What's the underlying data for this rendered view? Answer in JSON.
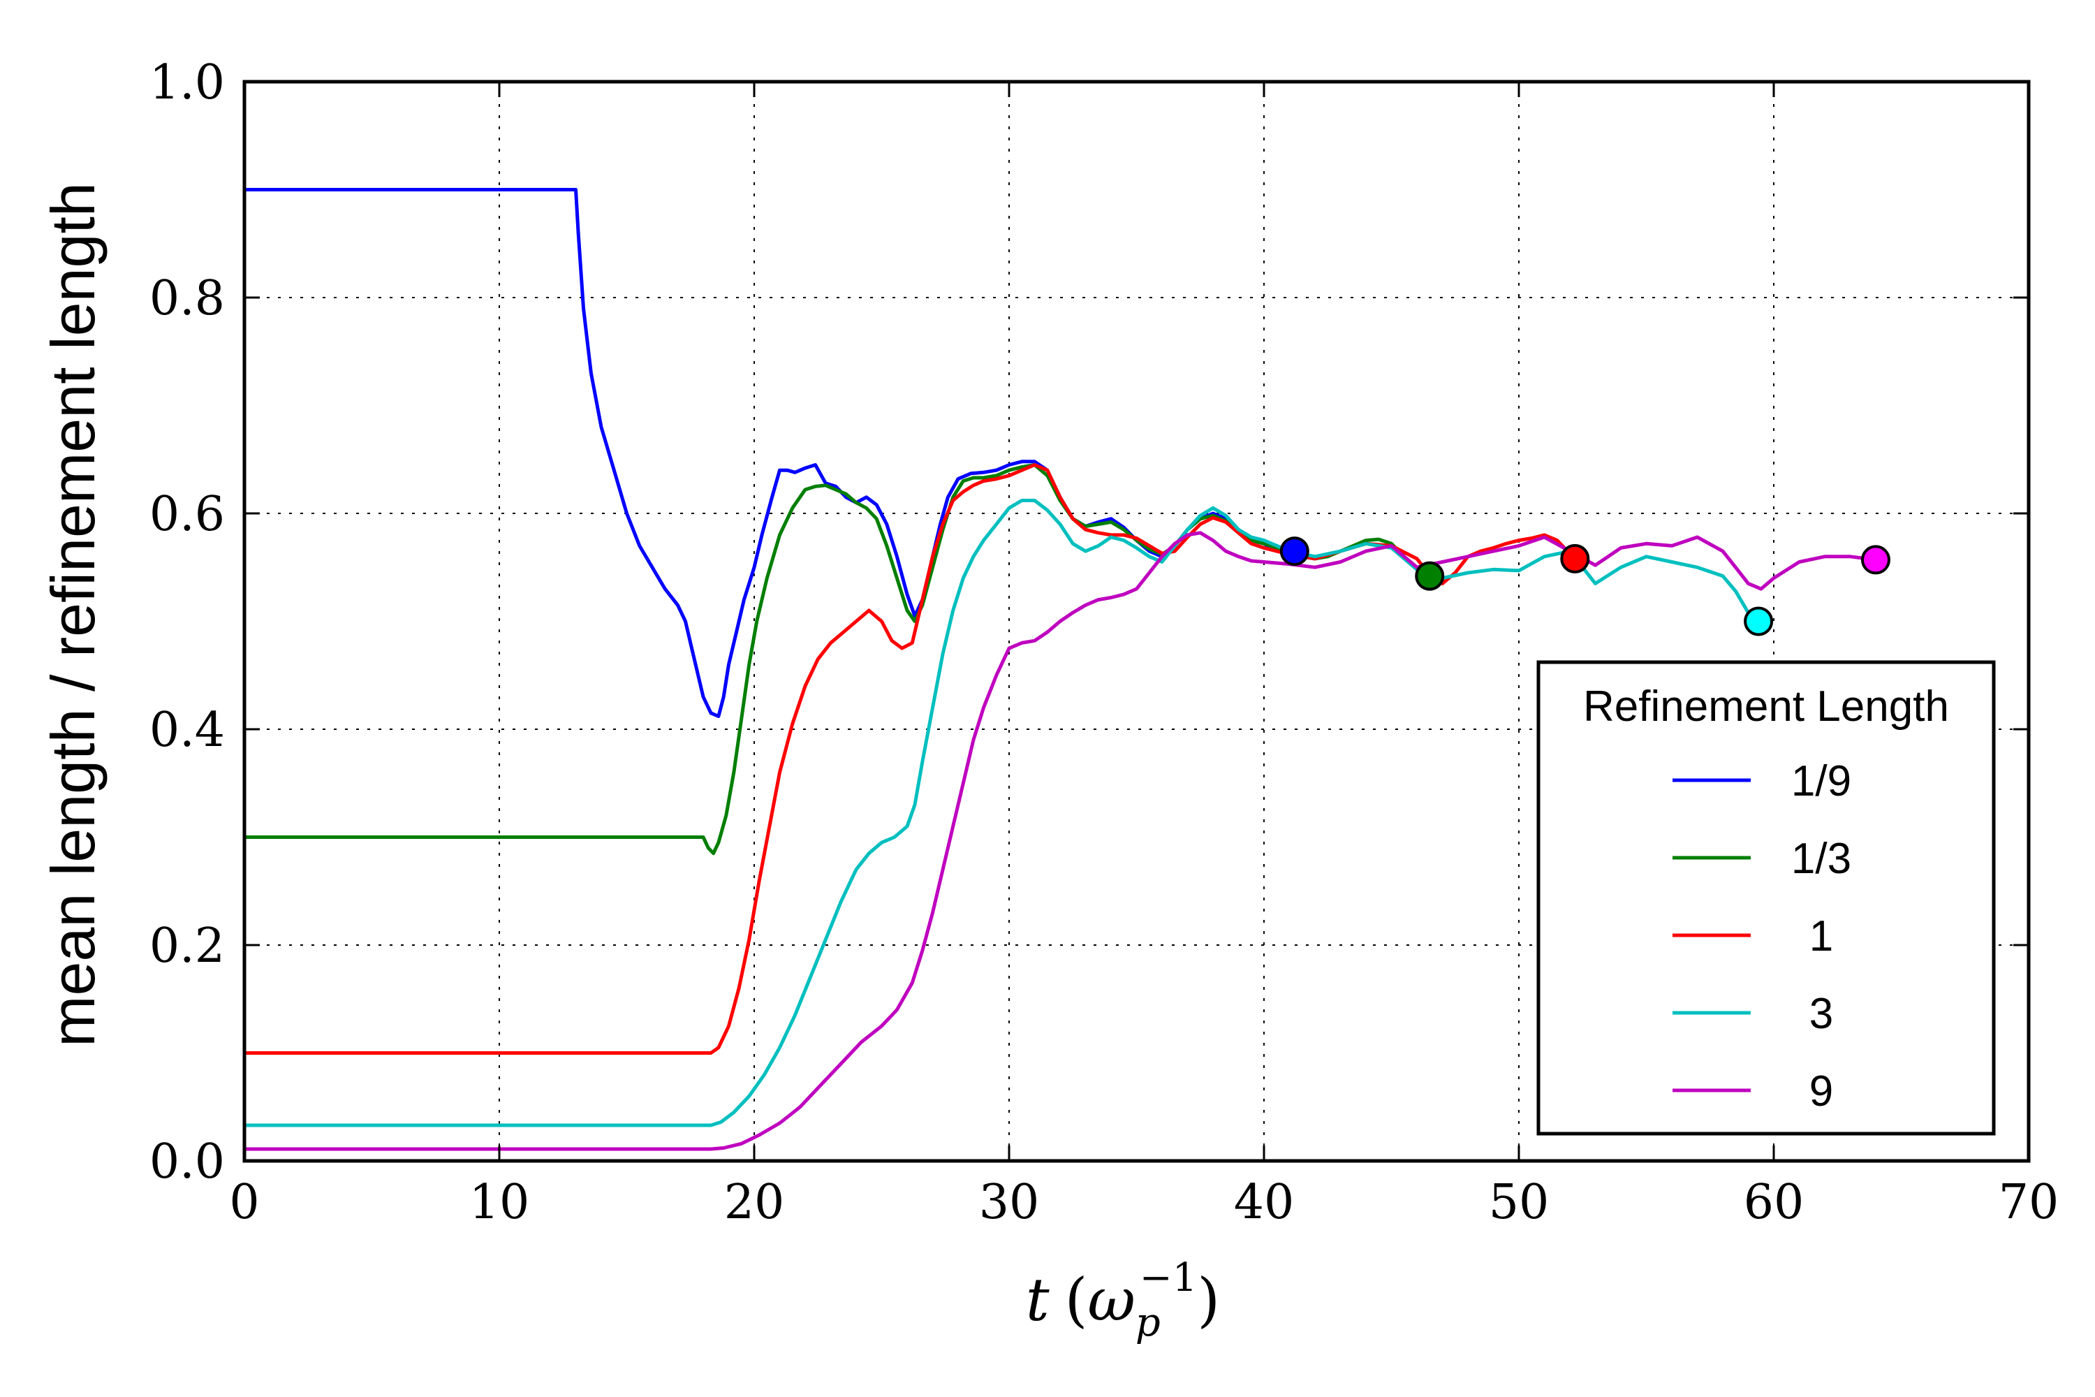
{
  "chart_data": {
    "type": "line",
    "title": "",
    "xlabel": "t (ω_p^-1)",
    "xlabel_main": "t",
    "xlabel_open": "(",
    "xlabel_omega": "ω",
    "xlabel_sub": "p",
    "xlabel_sup": "−1",
    "xlabel_close": ")",
    "ylabel": "mean length / refinement length",
    "xlim": [
      0,
      70
    ],
    "ylim": [
      0.0,
      1.0
    ],
    "xticks": [
      0,
      10,
      20,
      30,
      40,
      50,
      60,
      70
    ],
    "xtick_labels": [
      "0",
      "10",
      "20",
      "30",
      "40",
      "50",
      "60",
      "70"
    ],
    "yticks": [
      0.0,
      0.2,
      0.4,
      0.6,
      0.8,
      1.0
    ],
    "ytick_labels": [
      "0.0",
      "0.2",
      "0.4",
      "0.6",
      "0.8",
      "1.0"
    ],
    "grid": true,
    "legend": {
      "title": "Refinement Length",
      "placement": "lower-right"
    },
    "series": [
      {
        "name": "1/9",
        "color": "#0000ff",
        "x": [
          0,
          13,
          13.1,
          13.3,
          13.6,
          14,
          14.5,
          15,
          15.5,
          16,
          16.5,
          17,
          17.3,
          17.6,
          18,
          18.3,
          18.6,
          18.8,
          19,
          19.3,
          19.6,
          20,
          20.3,
          20.7,
          21,
          21.3,
          21.6,
          22,
          22.4,
          22.8,
          23.2,
          23.6,
          24,
          24.4,
          24.8,
          25.2,
          25.6,
          26,
          26.3,
          26.6,
          27,
          27.3,
          27.6,
          28,
          28.5,
          29,
          29.5,
          30,
          30.5,
          31,
          31.5,
          32,
          32.5,
          33,
          33.5,
          34,
          34.5,
          35,
          35.5,
          36,
          36.5,
          37,
          37.5,
          38,
          38.5,
          39,
          39.5,
          40,
          40.5,
          41.2
        ],
        "y": [
          0.9,
          0.9,
          0.86,
          0.79,
          0.73,
          0.68,
          0.64,
          0.6,
          0.57,
          0.55,
          0.53,
          0.515,
          0.5,
          0.47,
          0.43,
          0.415,
          0.412,
          0.43,
          0.46,
          0.49,
          0.52,
          0.55,
          0.58,
          0.615,
          0.64,
          0.64,
          0.638,
          0.642,
          0.645,
          0.628,
          0.625,
          0.615,
          0.61,
          0.615,
          0.608,
          0.59,
          0.56,
          0.525,
          0.505,
          0.52,
          0.56,
          0.59,
          0.615,
          0.632,
          0.637,
          0.638,
          0.64,
          0.645,
          0.648,
          0.648,
          0.64,
          0.615,
          0.595,
          0.588,
          0.592,
          0.595,
          0.587,
          0.575,
          0.565,
          0.56,
          0.57,
          0.585,
          0.595,
          0.6,
          0.595,
          0.585,
          0.575,
          0.572,
          0.565,
          0.565
        ],
        "end_marker": [
          41.2,
          0.565
        ]
      },
      {
        "name": "1/3",
        "color": "#007f00",
        "x": [
          0,
          18,
          18.2,
          18.4,
          18.6,
          18.9,
          19.2,
          19.5,
          19.8,
          20.1,
          20.5,
          21,
          21.5,
          22,
          22.4,
          22.8,
          23.2,
          23.6,
          24,
          24.4,
          24.8,
          25.2,
          25.6,
          26,
          26.3,
          26.6,
          27,
          27.4,
          27.8,
          28.2,
          28.6,
          29,
          29.5,
          30,
          30.5,
          31,
          31.5,
          32,
          32.5,
          33,
          33.5,
          34,
          34.5,
          35,
          35.5,
          36,
          36.5,
          37,
          37.5,
          38,
          38.5,
          39,
          39.5,
          40,
          40.5,
          41,
          41.5,
          42,
          42.5,
          43,
          43.5,
          44,
          44.5,
          45,
          45.5,
          46,
          46.5
        ],
        "y": [
          0.3,
          0.3,
          0.29,
          0.285,
          0.295,
          0.32,
          0.36,
          0.41,
          0.46,
          0.5,
          0.54,
          0.58,
          0.605,
          0.622,
          0.625,
          0.626,
          0.622,
          0.618,
          0.61,
          0.605,
          0.595,
          0.57,
          0.54,
          0.51,
          0.5,
          0.515,
          0.55,
          0.585,
          0.615,
          0.63,
          0.633,
          0.633,
          0.635,
          0.64,
          0.643,
          0.645,
          0.635,
          0.612,
          0.595,
          0.588,
          0.59,
          0.592,
          0.585,
          0.575,
          0.567,
          0.562,
          0.57,
          0.585,
          0.595,
          0.598,
          0.593,
          0.583,
          0.575,
          0.572,
          0.568,
          0.565,
          0.56,
          0.558,
          0.56,
          0.565,
          0.57,
          0.575,
          0.576,
          0.572,
          0.56,
          0.548,
          0.542
        ],
        "end_marker": [
          46.5,
          0.542
        ]
      },
      {
        "name": "1",
        "color": "#ff0000",
        "x": [
          0,
          18.3,
          18.6,
          19,
          19.4,
          19.8,
          20.2,
          20.6,
          21,
          21.5,
          22,
          22.5,
          23,
          23.5,
          24,
          24.5,
          25,
          25.4,
          25.8,
          26.2,
          26.6,
          27,
          27.4,
          27.8,
          28.2,
          28.6,
          29,
          29.5,
          30,
          30.5,
          31,
          31.5,
          32,
          32.5,
          33,
          33.5,
          34,
          34.5,
          35,
          35.5,
          36,
          36.5,
          37,
          37.5,
          38,
          38.5,
          39,
          39.5,
          40,
          41,
          42,
          43,
          44,
          45,
          46,
          46.5,
          47,
          47.5,
          48,
          48.5,
          49,
          49.5,
          50,
          50.5,
          51,
          51.5,
          52.2
        ],
        "y": [
          0.1,
          0.1,
          0.105,
          0.125,
          0.16,
          0.205,
          0.26,
          0.31,
          0.36,
          0.405,
          0.44,
          0.465,
          0.48,
          0.49,
          0.5,
          0.51,
          0.5,
          0.482,
          0.475,
          0.48,
          0.52,
          0.56,
          0.59,
          0.612,
          0.62,
          0.626,
          0.63,
          0.632,
          0.635,
          0.64,
          0.645,
          0.64,
          0.615,
          0.595,
          0.585,
          0.582,
          0.58,
          0.58,
          0.577,
          0.57,
          0.563,
          0.565,
          0.578,
          0.59,
          0.596,
          0.592,
          0.582,
          0.572,
          0.568,
          0.562,
          0.558,
          0.565,
          0.572,
          0.57,
          0.558,
          0.543,
          0.535,
          0.545,
          0.56,
          0.565,
          0.568,
          0.572,
          0.575,
          0.577,
          0.58,
          0.575,
          0.558
        ],
        "end_marker": [
          52.2,
          0.558
        ]
      },
      {
        "name": "3",
        "color": "#00bfbf",
        "x": [
          0,
          18.3,
          18.7,
          19.2,
          19.8,
          20.4,
          21,
          21.6,
          22.2,
          22.8,
          23.4,
          24,
          24.5,
          25,
          25.5,
          26,
          26.3,
          26.6,
          27,
          27.4,
          27.8,
          28.2,
          28.6,
          29,
          29.5,
          30,
          30.5,
          31,
          31.5,
          32,
          32.5,
          33,
          33.5,
          34,
          34.5,
          35,
          35.5,
          36,
          36.5,
          37,
          37.5,
          38,
          38.5,
          39,
          39.5,
          40,
          41,
          42,
          43,
          44,
          45,
          46,
          47,
          48,
          49,
          50,
          51,
          52,
          53,
          54,
          55,
          56,
          57,
          58,
          58.5,
          59,
          59.4
        ],
        "y": [
          0.033,
          0.033,
          0.036,
          0.045,
          0.06,
          0.08,
          0.105,
          0.135,
          0.17,
          0.205,
          0.24,
          0.27,
          0.285,
          0.295,
          0.3,
          0.31,
          0.33,
          0.37,
          0.42,
          0.47,
          0.51,
          0.54,
          0.56,
          0.575,
          0.59,
          0.605,
          0.612,
          0.612,
          0.603,
          0.59,
          0.572,
          0.565,
          0.57,
          0.578,
          0.575,
          0.568,
          0.56,
          0.555,
          0.57,
          0.585,
          0.598,
          0.605,
          0.598,
          0.585,
          0.578,
          0.575,
          0.565,
          0.56,
          0.565,
          0.572,
          0.568,
          0.548,
          0.54,
          0.545,
          0.548,
          0.547,
          0.56,
          0.565,
          0.535,
          0.55,
          0.56,
          0.555,
          0.55,
          0.542,
          0.528,
          0.508,
          0.5
        ],
        "end_marker": [
          59.4,
          0.5
        ]
      },
      {
        "name": "9",
        "color": "#bf00bf",
        "x": [
          0,
          18.3,
          18.8,
          19.5,
          20.2,
          21,
          21.8,
          22.6,
          23.4,
          24.2,
          25,
          25.6,
          26.2,
          26.6,
          27,
          27.4,
          27.8,
          28.2,
          28.6,
          29,
          29.5,
          30,
          30.5,
          31,
          31.5,
          32,
          32.5,
          33,
          33.5,
          34,
          34.5,
          35,
          35.5,
          36,
          36.5,
          37,
          37.5,
          38,
          38.5,
          39,
          39.5,
          40,
          41,
          42,
          43,
          44,
          45,
          46,
          47,
          48,
          49,
          50,
          51,
          52,
          53,
          54,
          55,
          56,
          57,
          58,
          58.5,
          59,
          59.5,
          60,
          61,
          62,
          63,
          64
        ],
        "y": [
          0.011,
          0.011,
          0.012,
          0.016,
          0.024,
          0.035,
          0.05,
          0.07,
          0.09,
          0.11,
          0.125,
          0.14,
          0.165,
          0.195,
          0.23,
          0.27,
          0.31,
          0.35,
          0.39,
          0.42,
          0.45,
          0.475,
          0.48,
          0.482,
          0.49,
          0.5,
          0.508,
          0.515,
          0.52,
          0.522,
          0.525,
          0.53,
          0.545,
          0.56,
          0.572,
          0.58,
          0.582,
          0.575,
          0.565,
          0.56,
          0.556,
          0.555,
          0.553,
          0.55,
          0.555,
          0.565,
          0.57,
          0.55,
          0.555,
          0.56,
          0.565,
          0.57,
          0.578,
          0.565,
          0.552,
          0.568,
          0.572,
          0.57,
          0.578,
          0.565,
          0.55,
          0.535,
          0.53,
          0.54,
          0.555,
          0.56,
          0.56,
          0.557
        ],
        "end_marker": [
          64.0,
          0.557
        ]
      }
    ]
  }
}
